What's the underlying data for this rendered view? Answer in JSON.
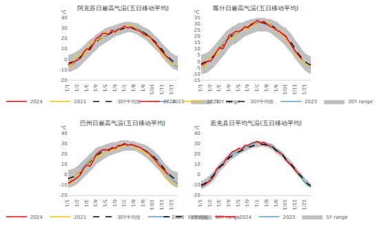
{
  "chart_data": [
    {
      "type": "line",
      "title": "阿克苏日最高气温(五日移动平均)",
      "ylabel": "°C",
      "categories": [
        "1/1",
        null,
        null,
        "2/1",
        null,
        null,
        "3/1",
        null,
        null,
        "4/1",
        null,
        null,
        "5/1",
        null,
        null,
        "6/1",
        null,
        null,
        "7/1",
        null,
        null,
        "8/1",
        null,
        null,
        "9/1",
        null,
        null,
        "10/1",
        null,
        null,
        "11/1",
        null,
        null,
        "12/1",
        null,
        null
      ],
      "ylim": [
        -20,
        40
      ],
      "yticks": [
        -20,
        -10,
        0,
        10,
        20,
        30,
        40
      ],
      "grid": false,
      "legend": "bottom",
      "series": [
        {
          "name": "30Y range",
          "type": "range",
          "color": "#c0c0c0",
          "low": [
            -12,
            -12,
            -10,
            -9,
            -6,
            -3,
            0,
            3,
            6,
            9,
            12,
            14,
            16,
            18,
            20,
            22,
            23,
            24,
            25,
            26,
            26,
            25,
            24,
            22,
            20,
            18,
            15,
            12,
            9,
            6,
            2,
            -2,
            -5,
            -8,
            -10,
            -11
          ],
          "high": [
            4,
            5,
            6,
            8,
            10,
            13,
            16,
            19,
            21,
            24,
            26,
            28,
            30,
            31,
            32,
            33,
            34,
            35,
            36,
            36,
            36,
            35,
            35,
            33,
            31,
            30,
            28,
            25,
            22,
            19,
            15,
            12,
            9,
            6,
            4,
            3
          ]
        },
        {
          "name": "2023",
          "color": "#5b9bd5",
          "values": [
            -5,
            -6,
            -4,
            1,
            3,
            6,
            10,
            13,
            15,
            20,
            21,
            23,
            22,
            25,
            27,
            28,
            29,
            30,
            31,
            32,
            30,
            29,
            30,
            28,
            25,
            24,
            21,
            18,
            15,
            12,
            8,
            3,
            0,
            -3,
            -6,
            -7
          ]
        },
        {
          "name": "30Y平均值",
          "color": "#000000",
          "line_style": "dash",
          "values": [
            -4,
            -3,
            -2,
            0,
            2,
            5,
            8,
            11,
            14,
            17,
            19,
            21,
            23,
            24,
            26,
            27,
            28,
            29,
            30,
            31,
            31,
            30,
            29,
            28,
            26,
            24,
            22,
            19,
            16,
            13,
            9,
            5,
            2,
            -1,
            -3,
            -4
          ]
        },
        {
          "name": "2021",
          "color": "#ffc000",
          "values": [
            -3,
            -7,
            0,
            2,
            5,
            4,
            9,
            14,
            16,
            20,
            18,
            22,
            25,
            25,
            27,
            26,
            28,
            30,
            31,
            32,
            33,
            31,
            29,
            27,
            25,
            22,
            21,
            17,
            14,
            10,
            6,
            2,
            -2,
            -4,
            -5,
            -6
          ]
        },
        {
          "name": "2024",
          "color": "#ff0000",
          "values": [
            -5,
            -4,
            -2,
            -1,
            1,
            7,
            10,
            9,
            14,
            20,
            22,
            25,
            25,
            24,
            28,
            26,
            29,
            30,
            32,
            30,
            31,
            29,
            28,
            27,
            24,
            23,
            22,
            18,
            15,
            11,
            7,
            4,
            1,
            null,
            null,
            null
          ]
        }
      ]
    },
    {
      "type": "line",
      "title": "喀什日最高气温(五日移动平均)",
      "ylabel": "°C",
      "categories": [
        "1/1",
        null,
        null,
        "2/1",
        null,
        null,
        "3/1",
        null,
        null,
        "4/1",
        null,
        null,
        "5/1",
        null,
        null,
        "6/1",
        null,
        null,
        "7/1",
        null,
        null,
        "8/1",
        null,
        null,
        "9/1",
        null,
        null,
        "10/1",
        null,
        null,
        "11/1",
        null,
        null,
        "12/1",
        null,
        null
      ],
      "ylim": [
        -15,
        35
      ],
      "yticks": [
        -15,
        -10,
        -5,
        0,
        5,
        10,
        15,
        20,
        25,
        30,
        35
      ],
      "grid": false,
      "legend": "bottom",
      "series": [
        {
          "name": "30Y range",
          "type": "range",
          "color": "#c0c0c0",
          "low": [
            -10,
            -10,
            -9,
            -7,
            -5,
            -2,
            1,
            4,
            7,
            11,
            13,
            14,
            16,
            18,
            20,
            21,
            22,
            23,
            24,
            24,
            24,
            24,
            23,
            21,
            19,
            17,
            15,
            12,
            9,
            6,
            2,
            -1,
            -4,
            -7,
            -9,
            -10
          ],
          "high": [
            5,
            6,
            7,
            9,
            12,
            15,
            18,
            21,
            24,
            26,
            28,
            29,
            31,
            31,
            32,
            33,
            34,
            34,
            35,
            35,
            35,
            34,
            34,
            33,
            32,
            30,
            28,
            27,
            24,
            21,
            17,
            14,
            10,
            7,
            5,
            4
          ]
        },
        {
          "name": "2023",
          "color": "#5b9bd5",
          "values": [
            -4,
            -3,
            -1,
            3,
            5,
            8,
            12,
            14,
            17,
            19,
            20,
            22,
            23,
            26,
            26,
            28,
            29,
            30,
            31,
            32,
            30,
            29,
            30,
            28,
            25,
            24,
            22,
            20,
            16,
            13,
            9,
            5,
            2,
            -1,
            -3,
            -5
          ]
        },
        {
          "name": "30Y平均值",
          "color": "#000000",
          "line_style": "dash",
          "values": [
            -2,
            -1,
            0,
            2,
            4,
            7,
            10,
            13,
            16,
            19,
            21,
            22,
            24,
            25,
            27,
            28,
            29,
            30,
            31,
            31,
            31,
            30,
            29,
            28,
            26,
            24,
            22,
            20,
            17,
            14,
            10,
            6,
            3,
            0,
            -2,
            -3
          ]
        },
        {
          "name": "2021",
          "color": "#ffc000",
          "values": [
            -2,
            -5,
            1,
            3,
            6,
            5,
            10,
            14,
            15,
            20,
            17,
            21,
            24,
            25,
            26,
            26,
            28,
            30,
            30,
            31,
            32,
            31,
            29,
            27,
            26,
            23,
            21,
            19,
            15,
            12,
            8,
            4,
            1,
            -1,
            -3,
            -4
          ]
        },
        {
          "name": "2024",
          "color": "#ff0000",
          "values": [
            -3,
            -2,
            0,
            0,
            3,
            8,
            11,
            10,
            15,
            21,
            22,
            24,
            24,
            25,
            28,
            27,
            30,
            31,
            33,
            31,
            32,
            30,
            28,
            27,
            25,
            24,
            22,
            20,
            16,
            12,
            8,
            5,
            2,
            null,
            null,
            null
          ]
        }
      ]
    },
    {
      "type": "line",
      "title": "巴州日最高气温(五日移动平均)",
      "ylabel": "°C",
      "categories": [
        "1/1",
        null,
        null,
        "2/1",
        null,
        null,
        "3/1",
        null,
        null,
        "4/1",
        null,
        null,
        "5/1",
        null,
        null,
        "6/1",
        null,
        null,
        "7/1",
        null,
        null,
        "8/1",
        null,
        null,
        "9/1",
        null,
        null,
        "10/1",
        null,
        null,
        "11/1",
        null,
        null,
        "12/1",
        null,
        null
      ],
      "ylim": [
        -20,
        40
      ],
      "yticks": [
        -20,
        -10,
        0,
        10,
        20,
        30,
        40
      ],
      "grid": false,
      "legend": "bottom",
      "series": [
        {
          "name": "30Y range",
          "type": "range",
          "color": "#c0c0c0",
          "low": [
            -13,
            -12,
            -11,
            -9,
            -6,
            -3,
            0,
            3,
            6,
            10,
            12,
            14,
            16,
            18,
            19,
            20,
            21,
            22,
            23,
            23,
            23,
            23,
            22,
            20,
            18,
            16,
            13,
            10,
            7,
            4,
            0,
            -4,
            -7,
            -10,
            -12,
            -13
          ],
          "high": [
            4,
            5,
            6,
            8,
            11,
            14,
            17,
            20,
            23,
            26,
            27,
            28,
            29,
            30,
            31,
            31,
            32,
            33,
            33,
            33,
            32,
            32,
            31,
            30,
            29,
            28,
            26,
            24,
            21,
            18,
            14,
            10,
            7,
            4,
            3,
            2
          ]
        },
        {
          "name": "2023",
          "color": "#5b9bd5",
          "values": [
            -8,
            -6,
            -4,
            1,
            3,
            7,
            11,
            14,
            16,
            20,
            21,
            23,
            23,
            24,
            26,
            26,
            27,
            28,
            29,
            29,
            28,
            28,
            27,
            26,
            24,
            23,
            20,
            18,
            15,
            12,
            8,
            2,
            -1,
            -4,
            -7,
            -9
          ]
        },
        {
          "name": "30Y平均值",
          "color": "#000000",
          "line_style": "dash",
          "values": [
            -4,
            -3,
            -2,
            0,
            2,
            5,
            9,
            12,
            15,
            18,
            20,
            22,
            23,
            24,
            25,
            26,
            27,
            28,
            29,
            29,
            29,
            28,
            27,
            26,
            24,
            22,
            20,
            18,
            15,
            12,
            8,
            4,
            1,
            -2,
            -4,
            -5
          ]
        },
        {
          "name": "2021",
          "color": "#ffc000",
          "values": [
            -5,
            -9,
            -3,
            0,
            3,
            5,
            9,
            13,
            15,
            19,
            16,
            20,
            22,
            23,
            24,
            24,
            26,
            27,
            28,
            28,
            29,
            27,
            25,
            23,
            22,
            20,
            18,
            15,
            12,
            8,
            4,
            0,
            -5,
            -7,
            -9,
            -10
          ]
        },
        {
          "name": "2024",
          "color": "#ff0000",
          "values": [
            -9,
            -7,
            -5,
            -3,
            0,
            6,
            9,
            8,
            13,
            19,
            22,
            24,
            24,
            23,
            26,
            25,
            28,
            28,
            30,
            28,
            29,
            28,
            27,
            26,
            24,
            22,
            20,
            16,
            13,
            9,
            6,
            3,
            0,
            null,
            null,
            null
          ]
        }
      ]
    },
    {
      "type": "line",
      "title": "若羌县日平均气温(五日移动平均)",
      "ylabel": "°C",
      "categories": [
        "1/1",
        null,
        null,
        "2/1",
        null,
        null,
        "3/1",
        null,
        null,
        "4/1",
        null,
        null,
        "5/1",
        null,
        null,
        "6/1",
        null,
        null,
        "7/1",
        null,
        null,
        "8/1",
        null,
        null,
        "9/1",
        null,
        null,
        "10/1",
        null,
        null,
        "11/1",
        null,
        null,
        "12/1",
        null,
        null
      ],
      "ylim": [
        -20,
        40
      ],
      "yticks": [
        -20,
        -10,
        0,
        10,
        20,
        30,
        40
      ],
      "grid": false,
      "legend": "bottom",
      "series": [
        {
          "name": "5Y range",
          "type": "range",
          "color": "#c0c0c0",
          "low": [
            -14,
            -13,
            -11,
            -9,
            -6,
            -2,
            3,
            6,
            9,
            13,
            15,
            17,
            19,
            21,
            22,
            24,
            25,
            26,
            26,
            27,
            27,
            26,
            25,
            23,
            20,
            18,
            16,
            12,
            9,
            6,
            2,
            -2,
            -5,
            -9,
            -12,
            -13
          ],
          "high": [
            -6,
            -5,
            -3,
            0,
            3,
            7,
            11,
            14,
            17,
            20,
            22,
            24,
            26,
            27,
            28,
            29,
            30,
            31,
            32,
            32,
            32,
            31,
            30,
            29,
            26,
            24,
            22,
            18,
            15,
            12,
            8,
            4,
            1,
            -3,
            -6,
            -9
          ]
        },
        {
          "name": "2023",
          "color": "#4bacc6",
          "values": [
            -12,
            -11,
            -8,
            -3,
            0,
            4,
            8,
            11,
            14,
            17,
            19,
            21,
            21,
            23,
            26,
            27,
            28,
            30,
            31,
            30,
            29,
            28,
            29,
            27,
            24,
            22,
            19,
            15,
            12,
            9,
            5,
            0,
            -3,
            -7,
            -10,
            -12
          ]
        },
        {
          "name": "2024",
          "color": "#ff0000",
          "values": [
            -11,
            -10,
            -8,
            -6,
            -2,
            5,
            8,
            9,
            15,
            18,
            22,
            23,
            25,
            24,
            28,
            28,
            30,
            31,
            32,
            30,
            31,
            29,
            27,
            26,
            23,
            21,
            19,
            14,
            11,
            8,
            4,
            1,
            -2,
            null,
            null,
            null
          ]
        },
        {
          "name": "5Y平均值",
          "color": "#000000",
          "line_style": "dash",
          "values": [
            -10,
            -9,
            -7,
            -4,
            -1,
            3,
            7,
            10,
            13,
            16,
            18,
            20,
            22,
            23,
            25,
            26,
            27,
            28,
            29,
            29,
            29,
            28,
            27,
            26,
            23,
            21,
            19,
            15,
            12,
            9,
            5,
            1,
            -2,
            -6,
            -9,
            -11
          ]
        }
      ]
    }
  ]
}
